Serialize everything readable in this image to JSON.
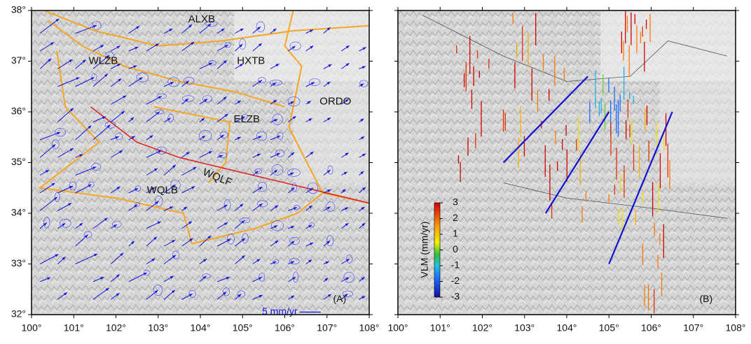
{
  "xlim": [
    100,
    108
  ],
  "ylim": [
    32,
    38
  ],
  "xticks": [
    {
      "value": 100,
      "label": "100°"
    },
    {
      "value": 101,
      "label": "101°"
    },
    {
      "value": 102,
      "label": "102°"
    },
    {
      "value": 103,
      "label": "103°"
    },
    {
      "value": 104,
      "label": "104°"
    },
    {
      "value": 105,
      "label": "105°"
    },
    {
      "value": 106,
      "label": "106°"
    },
    {
      "value": 107,
      "label": "107°"
    },
    {
      "value": 108,
      "label": "108°"
    }
  ],
  "yticks": [
    {
      "value": 32,
      "label": "32°"
    },
    {
      "value": 33,
      "label": "33°"
    },
    {
      "value": 34,
      "label": "34°"
    },
    {
      "value": 35,
      "label": "35°"
    },
    {
      "value": 36,
      "label": "36°"
    },
    {
      "value": 37,
      "label": "37°"
    },
    {
      "value": 38,
      "label": "38°"
    }
  ],
  "panel_a": {
    "tag": "(A)",
    "scale_label": "5 mm/yr",
    "region_labels": [
      "ALXB",
      "WLZB",
      "HXTB",
      "ORDO",
      "ELZB",
      "WQLF",
      "WQLB"
    ]
  },
  "panel_b": {
    "tag": "(B)",
    "colorbar": {
      "label": "VLM (mm/yr)",
      "lim": [
        -3,
        3
      ],
      "ticks": [
        3,
        2,
        1,
        0,
        -1,
        -2,
        -3
      ]
    }
  }
}
